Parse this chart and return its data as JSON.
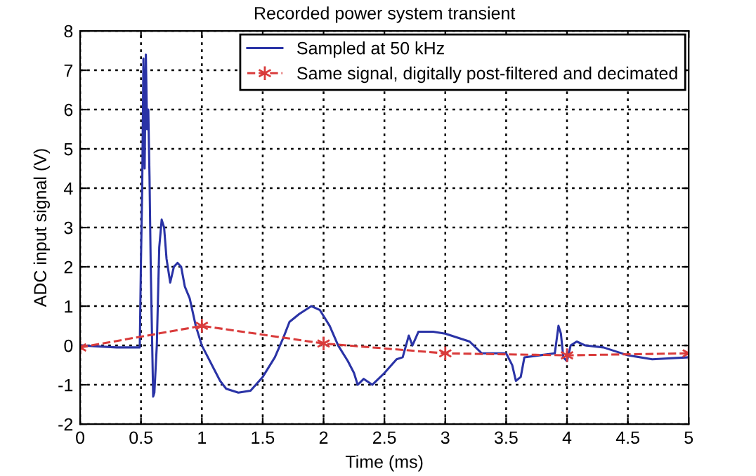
{
  "chart_data": {
    "type": "line",
    "title": "Recorded power system transient",
    "xlabel": "Time (ms)",
    "ylabel": "ADC input signal (V)",
    "xlim": [
      0,
      5
    ],
    "xticks": [
      0,
      0.5,
      1,
      1.5,
      2,
      2.5,
      3,
      3.5,
      4,
      4.5,
      5
    ],
    "ylim": [
      -2,
      8
    ],
    "yticks": [
      -2,
      -1,
      0,
      1,
      2,
      3,
      4,
      5,
      6,
      7,
      8
    ],
    "grid": true,
    "legend": "top right",
    "series": [
      {
        "name": "Sampled at 50 kHz",
        "color": "#2a33a6",
        "line_style": "solid",
        "marker": "none",
        "x": [
          0,
          0.3,
          0.49,
          0.5,
          0.51,
          0.52,
          0.53,
          0.54,
          0.55,
          0.56,
          0.57,
          0.58,
          0.6,
          0.61,
          0.63,
          0.65,
          0.67,
          0.69,
          0.71,
          0.74,
          0.77,
          0.8,
          0.83,
          0.86,
          0.9,
          0.95,
          1.0,
          1.05,
          1.1,
          1.15,
          1.2,
          1.3,
          1.4,
          1.5,
          1.6,
          1.67,
          1.72,
          1.8,
          1.9,
          1.97,
          2.05,
          2.12,
          2.2,
          2.25,
          2.28,
          2.33,
          2.4,
          2.5,
          2.6,
          2.65,
          2.7,
          2.73,
          2.78,
          2.9,
          3.0,
          3.2,
          3.3,
          3.5,
          3.55,
          3.58,
          3.62,
          3.65,
          3.9,
          3.93,
          3.95,
          3.97,
          4.0,
          4.03,
          4.08,
          4.15,
          4.3,
          4.5,
          4.7,
          5.0
        ],
        "values": [
          0,
          -0.05,
          -0.05,
          2.2,
          4,
          7.3,
          4.5,
          7.4,
          5.5,
          6,
          4.3,
          2,
          -1.3,
          -1.2,
          0,
          2.5,
          3.2,
          3,
          2.2,
          1.6,
          2,
          2.1,
          2,
          1.5,
          1.2,
          0.5,
          0,
          -0.3,
          -0.6,
          -0.9,
          -1.1,
          -1.2,
          -1.15,
          -0.8,
          -0.3,
          0.2,
          0.6,
          0.8,
          1.0,
          0.9,
          0.5,
          0,
          -0.4,
          -0.7,
          -1.0,
          -0.85,
          -1.0,
          -0.7,
          -0.35,
          -0.3,
          0.25,
          0,
          0.35,
          0.35,
          0.3,
          0.1,
          -0.2,
          -0.2,
          -0.5,
          -0.9,
          -0.8,
          -0.3,
          -0.2,
          0.5,
          0.3,
          -0.3,
          -0.4,
          0,
          0.1,
          0,
          -0.05,
          -0.25,
          -0.35,
          -0.3
        ]
      },
      {
        "name": "Same signal, digitally post-filtered and decimated",
        "color": "#d93b3b",
        "line_style": "dashed",
        "marker": "cross",
        "x": [
          0,
          1,
          2,
          3,
          4,
          5
        ],
        "values": [
          -0.05,
          0.5,
          0.05,
          -0.2,
          -0.25,
          -0.2
        ]
      }
    ]
  }
}
